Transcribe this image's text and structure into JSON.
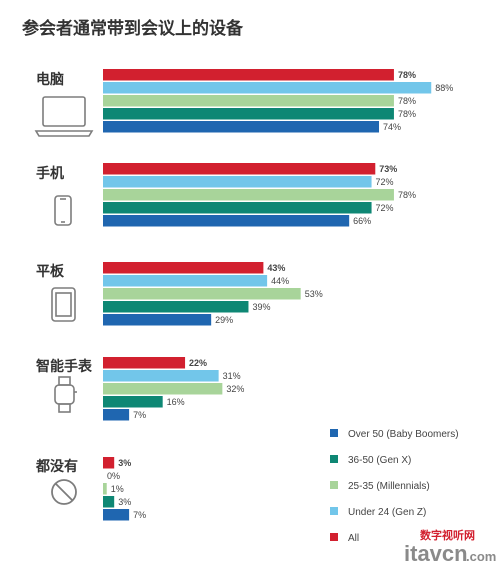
{
  "title": "参会者通常带到会议上的设备",
  "colors": {
    "All": "#d2202f",
    "Under 24 (Gen Z)": "#72c6ea",
    "25-35 (Millennials)": "#a8d49a",
    "36-50 (Gen X)": "#0e8774",
    "Over 50 (Baby Boomers)": "#1f66b0",
    "icon": "#7d7d7d"
  },
  "chart_data": {
    "type": "bar",
    "orientation": "horizontal",
    "title": "参会者通常带到会议上的设备",
    "unit": "%",
    "categories": [
      "电脑",
      "手机",
      "平板",
      "智能手表",
      "都没有"
    ],
    "category_icons": [
      "laptop-icon",
      "phone-icon",
      "tablet-icon",
      "smartwatch-icon",
      "no-device-icon"
    ],
    "series": [
      {
        "name": "All",
        "values": [
          78,
          73,
          43,
          22,
          3
        ]
      },
      {
        "name": "Under 24 (Gen Z)",
        "values": [
          88,
          72,
          44,
          31,
          0
        ]
      },
      {
        "name": "25-35 (Millennials)",
        "values": [
          78,
          78,
          53,
          32,
          1
        ]
      },
      {
        "name": "36-50 (Gen X)",
        "values": [
          78,
          72,
          39,
          16,
          3
        ]
      },
      {
        "name": "Over 50 (Baby Boomers)",
        "values": [
          74,
          66,
          29,
          7,
          7
        ]
      }
    ],
    "value_labels": [
      [
        "78%",
        "88%",
        "78%",
        "78%",
        "74%"
      ],
      [
        "73%",
        "72%",
        "78%",
        "72%",
        "66%"
      ],
      [
        "43%",
        "44%",
        "53%",
        "39%",
        "29%"
      ],
      [
        "22%",
        "31%",
        "32%",
        "16%",
        "7%"
      ],
      [
        "3%",
        "0%",
        "1%",
        "3%",
        "7%"
      ]
    ],
    "legend": {
      "placement": "bottom-right",
      "entries": [
        "Over 50 (Baby Boomers)",
        "36-50 (Gen X)",
        "25-35 (Millennials)",
        "Under 24 (Gen Z)",
        "All"
      ]
    },
    "grid": false
  },
  "watermark": {
    "line1": "数字视听网",
    "line2": "itavcn",
    "line3": ".com"
  }
}
